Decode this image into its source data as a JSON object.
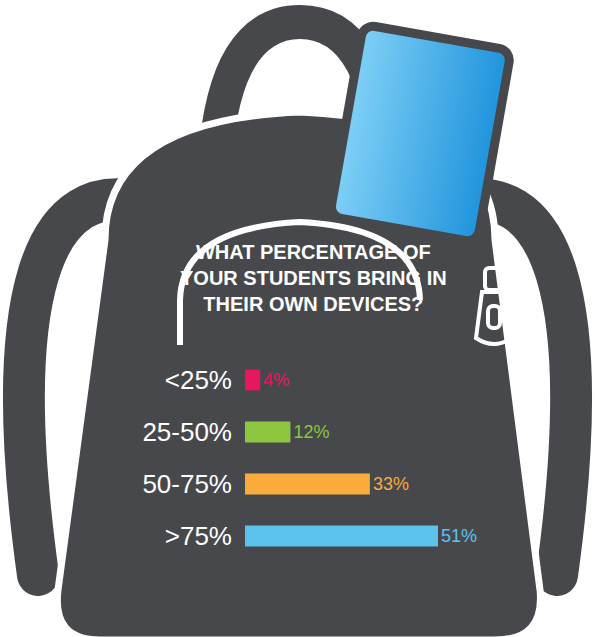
{
  "chart_data": {
    "type": "bar",
    "orientation": "horizontal",
    "title": "WHAT PERCENTAGE OF YOUR STUDENTS BRING IN THEIR OWN DEVICES?",
    "categories": [
      "<25%",
      "25-50%",
      "50-75%",
      ">75%"
    ],
    "values": [
      4,
      12,
      33,
      51
    ],
    "value_labels": [
      "4%",
      "12%",
      "33%",
      "51%"
    ],
    "colors": [
      "#e6175c",
      "#8dc63f",
      "#f9ab3b",
      "#5cc3ef"
    ],
    "data_labels": true,
    "tick_labels": "y",
    "grid": false
  }
}
